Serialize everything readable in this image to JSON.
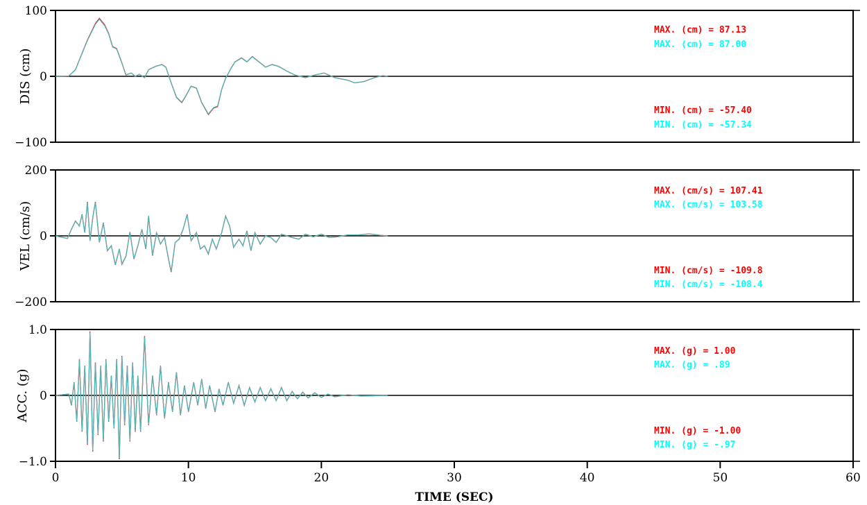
{
  "chart_data": [
    {
      "type": "line",
      "panel": "displacement",
      "ylabel": "DIS (cm)",
      "ylim": [
        -100,
        100
      ],
      "yticks": [
        100,
        0,
        -100
      ],
      "ytick_labels": [
        "100",
        "0",
        "−100"
      ],
      "xlim": [
        0,
        60
      ],
      "colors": [
        "#ff0000",
        "#00ffff"
      ],
      "series_points": [
        [
          0,
          0
        ],
        [
          1,
          0.5
        ],
        [
          1.5,
          10
        ],
        [
          2,
          35
        ],
        [
          2.4,
          55
        ],
        [
          3,
          80
        ],
        [
          3.3,
          88
        ],
        [
          3.7,
          78
        ],
        [
          4,
          65
        ],
        [
          4.3,
          45
        ],
        [
          4.6,
          42
        ],
        [
          5,
          20
        ],
        [
          5.3,
          2
        ],
        [
          5.7,
          5
        ],
        [
          6,
          0
        ],
        [
          6.3,
          3
        ],
        [
          6.7,
          -2
        ],
        [
          7,
          10
        ],
        [
          7.5,
          15
        ],
        [
          8,
          18
        ],
        [
          8.3,
          14
        ],
        [
          8.7,
          -10
        ],
        [
          9.1,
          -32
        ],
        [
          9.5,
          -40
        ],
        [
          9.8,
          -30
        ],
        [
          10.2,
          -15
        ],
        [
          10.6,
          -18
        ],
        [
          11,
          -40
        ],
        [
          11.5,
          -58
        ],
        [
          11.9,
          -48
        ],
        [
          12.2,
          -46
        ],
        [
          12.5,
          -20
        ],
        [
          12.8,
          -3
        ],
        [
          13.2,
          12
        ],
        [
          13.5,
          22
        ],
        [
          14,
          28
        ],
        [
          14.4,
          22
        ],
        [
          14.8,
          30
        ],
        [
          15.3,
          22
        ],
        [
          15.8,
          14
        ],
        [
          16.3,
          18
        ],
        [
          16.8,
          15
        ],
        [
          17.4,
          8
        ],
        [
          18,
          2
        ],
        [
          18.8,
          -2
        ],
        [
          19.5,
          2
        ],
        [
          20.2,
          5
        ],
        [
          21,
          -2
        ],
        [
          22,
          -6
        ],
        [
          22.5,
          -10
        ],
        [
          23.2,
          -8
        ],
        [
          24,
          -2
        ],
        [
          24.6,
          1
        ],
        [
          25,
          0
        ]
      ],
      "stats": [
        {
          "label": "MAX. (cm) =",
          "value": "87.13",
          "color": "#ff0000"
        },
        {
          "label": "MAX. (cm) =",
          "value": "87.00",
          "color": "#00ffff"
        },
        {
          "label": "MIN. (cm) =",
          "value": "-57.40",
          "color": "#ff0000"
        },
        {
          "label": "MIN. (cm) =",
          "value": "-57.34",
          "color": "#00ffff"
        }
      ]
    },
    {
      "type": "line",
      "panel": "velocity",
      "ylabel": "VEL (cm/s)",
      "ylim": [
        -200,
        200
      ],
      "yticks": [
        200,
        0,
        -200
      ],
      "ytick_labels": [
        "200",
        "0",
        "−200"
      ],
      "xlim": [
        0,
        60
      ],
      "colors": [
        "#ff0000",
        "#00ffff"
      ],
      "series_points": [
        [
          0,
          0
        ],
        [
          0.9,
          -8
        ],
        [
          1.2,
          20
        ],
        [
          1.5,
          45
        ],
        [
          1.8,
          30
        ],
        [
          2.0,
          65
        ],
        [
          2.2,
          10
        ],
        [
          2.4,
          103
        ],
        [
          2.6,
          -15
        ],
        [
          2.8,
          55
        ],
        [
          3.0,
          103
        ],
        [
          3.3,
          -20
        ],
        [
          3.6,
          40
        ],
        [
          3.9,
          -45
        ],
        [
          4.2,
          -30
        ],
        [
          4.5,
          -88
        ],
        [
          4.8,
          -40
        ],
        [
          5.0,
          -86
        ],
        [
          5.3,
          -62
        ],
        [
          5.6,
          12
        ],
        [
          5.9,
          -70
        ],
        [
          6.2,
          -30
        ],
        [
          6.5,
          20
        ],
        [
          6.8,
          -40
        ],
        [
          7.0,
          60
        ],
        [
          7.3,
          -60
        ],
        [
          7.6,
          10
        ],
        [
          7.9,
          -25
        ],
        [
          8.2,
          -5
        ],
        [
          8.5,
          -70
        ],
        [
          8.7,
          -110
        ],
        [
          9.0,
          -20
        ],
        [
          9.3,
          -10
        ],
        [
          9.6,
          20
        ],
        [
          9.9,
          65
        ],
        [
          10.2,
          -15
        ],
        [
          10.6,
          10
        ],
        [
          10.9,
          -40
        ],
        [
          11.2,
          -30
        ],
        [
          11.5,
          -55
        ],
        [
          11.8,
          -10
        ],
        [
          12.1,
          -40
        ],
        [
          12.5,
          10
        ],
        [
          12.8,
          60
        ],
        [
          13.1,
          30
        ],
        [
          13.4,
          -35
        ],
        [
          13.8,
          -10
        ],
        [
          14.1,
          -30
        ],
        [
          14.4,
          15
        ],
        [
          14.7,
          -45
        ],
        [
          15,
          10
        ],
        [
          15.4,
          -25
        ],
        [
          15.8,
          0
        ],
        [
          16.2,
          -5
        ],
        [
          16.6,
          -20
        ],
        [
          17,
          5
        ],
        [
          17.4,
          0
        ],
        [
          17.8,
          -5
        ],
        [
          18.3,
          -10
        ],
        [
          18.8,
          5
        ],
        [
          19.4,
          -3
        ],
        [
          20,
          5
        ],
        [
          20.6,
          -5
        ],
        [
          21.2,
          -3
        ],
        [
          22,
          3
        ],
        [
          22.8,
          3
        ],
        [
          23.6,
          6
        ],
        [
          24.4,
          2
        ],
        [
          25,
          0
        ]
      ],
      "stats": [
        {
          "label": "MAX. (cm/s) =",
          "value": "107.41",
          "color": "#ff0000"
        },
        {
          "label": "MAX. (cm/s) =",
          "value": "103.58",
          "color": "#00ffff"
        },
        {
          "label": "MIN. (cm/s) =",
          "value": "-109.8",
          "color": "#ff0000"
        },
        {
          "label": "MIN. (cm/s) =",
          "value": "-108.4",
          "color": "#00ffff"
        }
      ]
    },
    {
      "type": "line",
      "panel": "acceleration",
      "ylabel": "ACC. (g)",
      "ylim": [
        -1.0,
        1.0
      ],
      "yticks": [
        1.0,
        0,
        -1.0
      ],
      "ytick_labels": [
        "1.0",
        "0",
        "−1.0"
      ],
      "xlim": [
        0,
        60
      ],
      "xticks": [
        0,
        10,
        20,
        30,
        40,
        50,
        60
      ],
      "xlabel": "TIME (SEC)",
      "colors": [
        "#ff0000",
        "#00ffff"
      ],
      "series_points": [
        [
          0,
          0
        ],
        [
          1,
          0.02
        ],
        [
          1.2,
          -0.15
        ],
        [
          1.4,
          0.2
        ],
        [
          1.6,
          -0.4
        ],
        [
          1.8,
          0.55
        ],
        [
          2.0,
          -0.55
        ],
        [
          2.2,
          0.45
        ],
        [
          2.4,
          -0.75
        ],
        [
          2.6,
          0.97
        ],
        [
          2.8,
          -0.85
        ],
        [
          3.0,
          0.5
        ],
        [
          3.2,
          -0.6
        ],
        [
          3.4,
          0.45
        ],
        [
          3.6,
          -0.7
        ],
        [
          3.8,
          0.55
        ],
        [
          4.0,
          -0.4
        ],
        [
          4.2,
          0.3
        ],
        [
          4.4,
          -0.5
        ],
        [
          4.6,
          0.55
        ],
        [
          4.8,
          -0.97
        ],
        [
          5.0,
          0.6
        ],
        [
          5.2,
          -0.45
        ],
        [
          5.4,
          0.45
        ],
        [
          5.6,
          -0.7
        ],
        [
          5.8,
          0.5
        ],
        [
          6.0,
          -0.55
        ],
        [
          6.2,
          0.3
        ],
        [
          6.4,
          -0.55
        ],
        [
          6.7,
          0.9
        ],
        [
          7.0,
          -0.45
        ],
        [
          7.3,
          0.3
        ],
        [
          7.6,
          -0.3
        ],
        [
          7.9,
          0.45
        ],
        [
          8.2,
          -0.35
        ],
        [
          8.5,
          0.2
        ],
        [
          8.8,
          -0.25
        ],
        [
          9.1,
          0.35
        ],
        [
          9.4,
          -0.3
        ],
        [
          9.7,
          0.15
        ],
        [
          10,
          -0.25
        ],
        [
          10.4,
          0.2
        ],
        [
          10.7,
          -0.15
        ],
        [
          11,
          0.25
        ],
        [
          11.3,
          -0.2
        ],
        [
          11.6,
          0.15
        ],
        [
          12,
          -0.25
        ],
        [
          12.3,
          0.1
        ],
        [
          12.6,
          -0.15
        ],
        [
          13,
          0.2
        ],
        [
          13.4,
          -0.12
        ],
        [
          13.8,
          0.15
        ],
        [
          14.2,
          -0.15
        ],
        [
          14.6,
          0.12
        ],
        [
          15,
          -0.1
        ],
        [
          15.4,
          0.12
        ],
        [
          15.8,
          -0.08
        ],
        [
          16.2,
          0.1
        ],
        [
          16.6,
          -0.08
        ],
        [
          17,
          0.12
        ],
        [
          17.4,
          -0.08
        ],
        [
          17.8,
          0.06
        ],
        [
          18.2,
          -0.05
        ],
        [
          18.6,
          0.05
        ],
        [
          19,
          -0.04
        ],
        [
          19.5,
          0.04
        ],
        [
          20,
          -0.03
        ],
        [
          20.5,
          0.02
        ],
        [
          21,
          -0.02
        ],
        [
          22,
          0.01
        ],
        [
          23,
          -0.01
        ],
        [
          25,
          0
        ]
      ],
      "stats": [
        {
          "label": "MAX. (g) =",
          "value": "1.00",
          "color": "#ff0000"
        },
        {
          "label": "MAX. (g) =",
          "value": ".89",
          "color": "#00ffff"
        },
        {
          "label": "MIN. (g) =",
          "value": "-1.00",
          "color": "#ff0000"
        },
        {
          "label": "MIN. (g) =",
          "value": "-.97",
          "color": "#00ffff"
        }
      ]
    }
  ]
}
